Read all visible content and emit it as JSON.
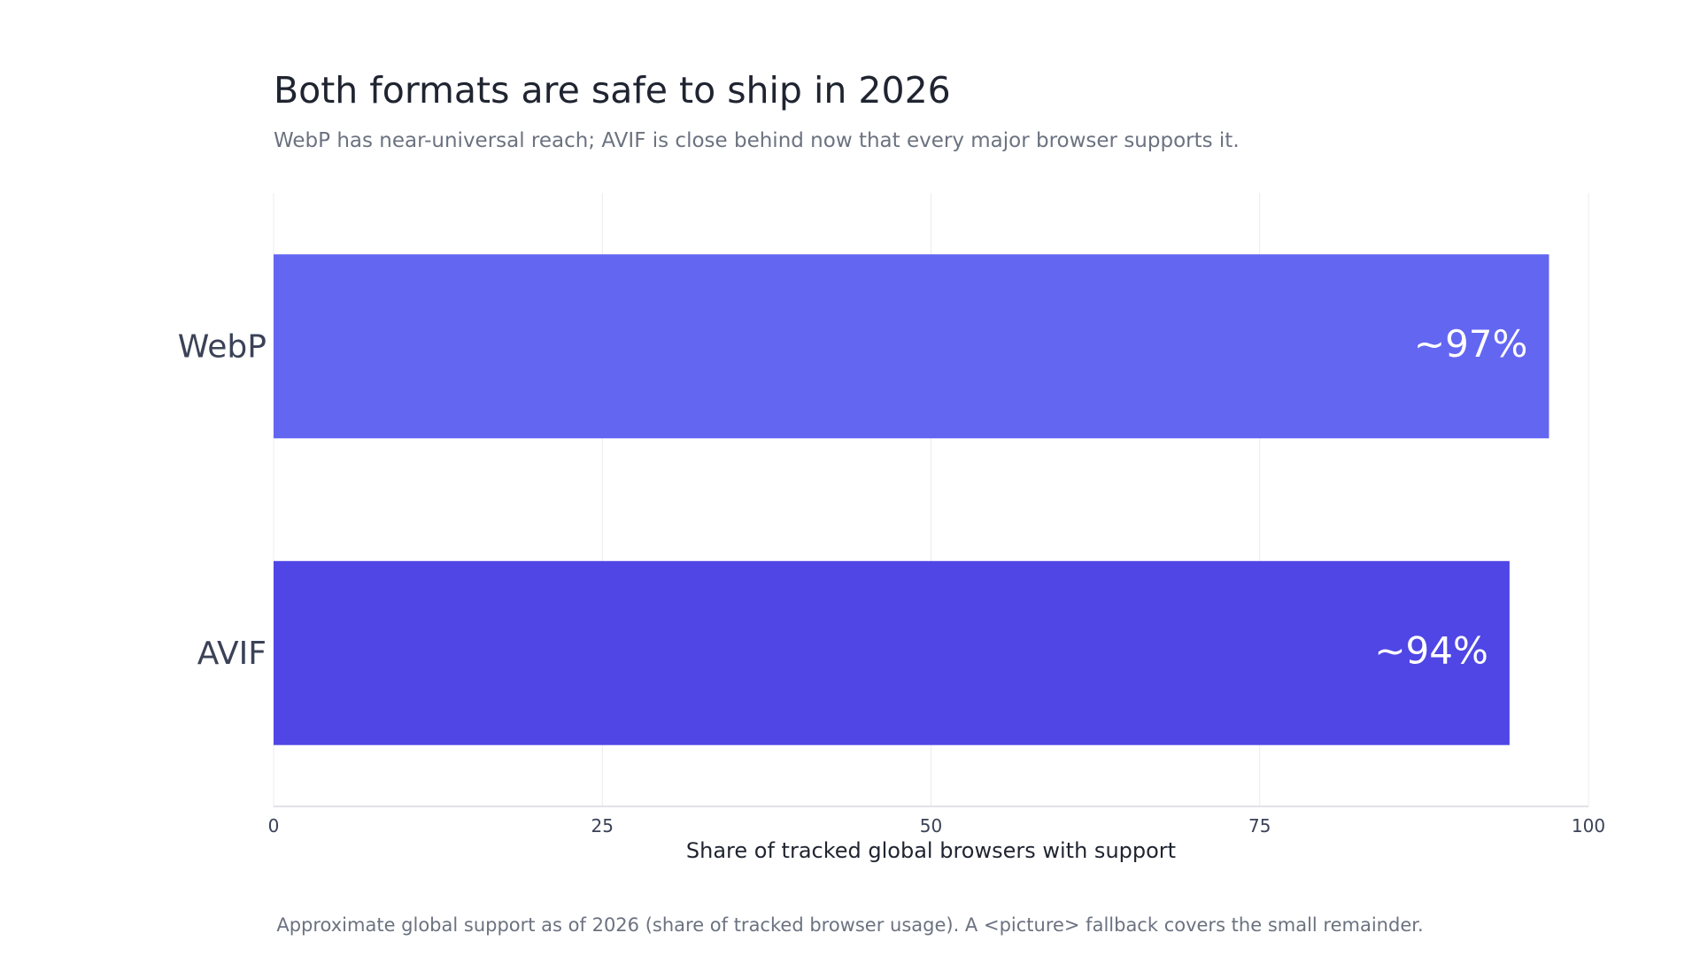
{
  "header": {
    "title": "Both formats are safe to ship in 2026",
    "subtitle": "WebP has near-universal reach; AVIF is close behind now that every major browser supports it."
  },
  "chart_data": {
    "type": "bar",
    "orientation": "horizontal",
    "categories": [
      "WebP",
      "AVIF"
    ],
    "values": [
      97,
      94
    ],
    "data_labels": [
      "~97%",
      "~94%"
    ],
    "colors": [
      "#6366f1",
      "#4f46e5"
    ],
    "xlabel": "Share of tracked global browsers with support",
    "ylabel": "",
    "xlim": [
      0,
      100
    ],
    "xticks": [
      "0",
      "25",
      "50",
      "75",
      "100"
    ],
    "grid": true,
    "legend": "none"
  },
  "footer": {
    "caption": "Approximate global support as of 2026 (share of tracked browser usage). A <picture> fallback covers the small remainder."
  }
}
